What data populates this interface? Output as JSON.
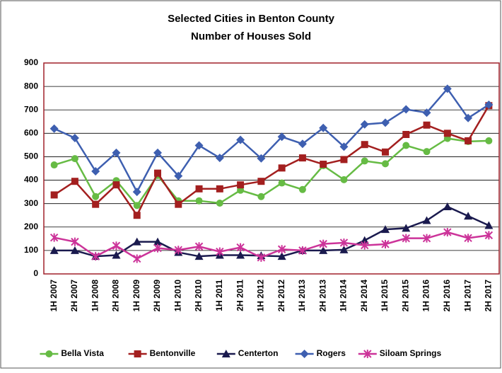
{
  "chart_data": {
    "type": "line",
    "title": [
      "Selected Cities in Benton County",
      "Number of Houses Sold"
    ],
    "categories": [
      "1H 2007",
      "2H 2007",
      "1H 2008",
      "2H 2008",
      "1H 2009",
      "2H 2009",
      "1H 2010",
      "2H 2010",
      "1H 2011",
      "2H 2011",
      "1H 2012",
      "2H 2012",
      "1H 2013",
      "2H 2013",
      "1H 2014",
      "2H 2014",
      "1H 2015",
      "2H 2015",
      "1H 2016",
      "2H 2016",
      "1H 2017",
      "2H 2017"
    ],
    "series": [
      {
        "name": "Bella Vista",
        "color": "#66bb44",
        "marker": "circle",
        "values": [
          465,
          492,
          330,
          398,
          292,
          420,
          312,
          312,
          302,
          357,
          330,
          388,
          360,
          462,
          402,
          482,
          470,
          548,
          522,
          578,
          565,
          568
        ]
      },
      {
        "name": "Bentonville",
        "color": "#a31f1f",
        "marker": "square",
        "values": [
          337,
          395,
          297,
          380,
          250,
          430,
          297,
          363,
          363,
          380,
          395,
          452,
          495,
          468,
          488,
          552,
          520,
          595,
          635,
          600,
          568,
          718
        ]
      },
      {
        "name": "Centerton",
        "color": "#1a1a4e",
        "marker": "triangle",
        "values": [
          100,
          100,
          75,
          80,
          137,
          137,
          92,
          75,
          80,
          80,
          78,
          75,
          100,
          100,
          103,
          143,
          190,
          195,
          228,
          287,
          247,
          207
        ]
      },
      {
        "name": "Rogers",
        "color": "#3e5fb0",
        "marker": "diamond",
        "values": [
          620,
          580,
          438,
          517,
          350,
          517,
          418,
          548,
          495,
          572,
          493,
          585,
          555,
          623,
          543,
          638,
          645,
          702,
          688,
          790,
          665,
          722
        ]
      },
      {
        "name": "Siloam Springs",
        "color": "#cc3399",
        "marker": "star",
        "values": [
          155,
          137,
          75,
          120,
          65,
          110,
          102,
          117,
          95,
          113,
          70,
          105,
          100,
          128,
          133,
          122,
          127,
          152,
          152,
          178,
          153,
          165
        ]
      }
    ],
    "ylim": [
      0,
      900
    ],
    "yticks": [
      0,
      100,
      200,
      300,
      400,
      500,
      600,
      700,
      800,
      900
    ],
    "grid": true
  }
}
